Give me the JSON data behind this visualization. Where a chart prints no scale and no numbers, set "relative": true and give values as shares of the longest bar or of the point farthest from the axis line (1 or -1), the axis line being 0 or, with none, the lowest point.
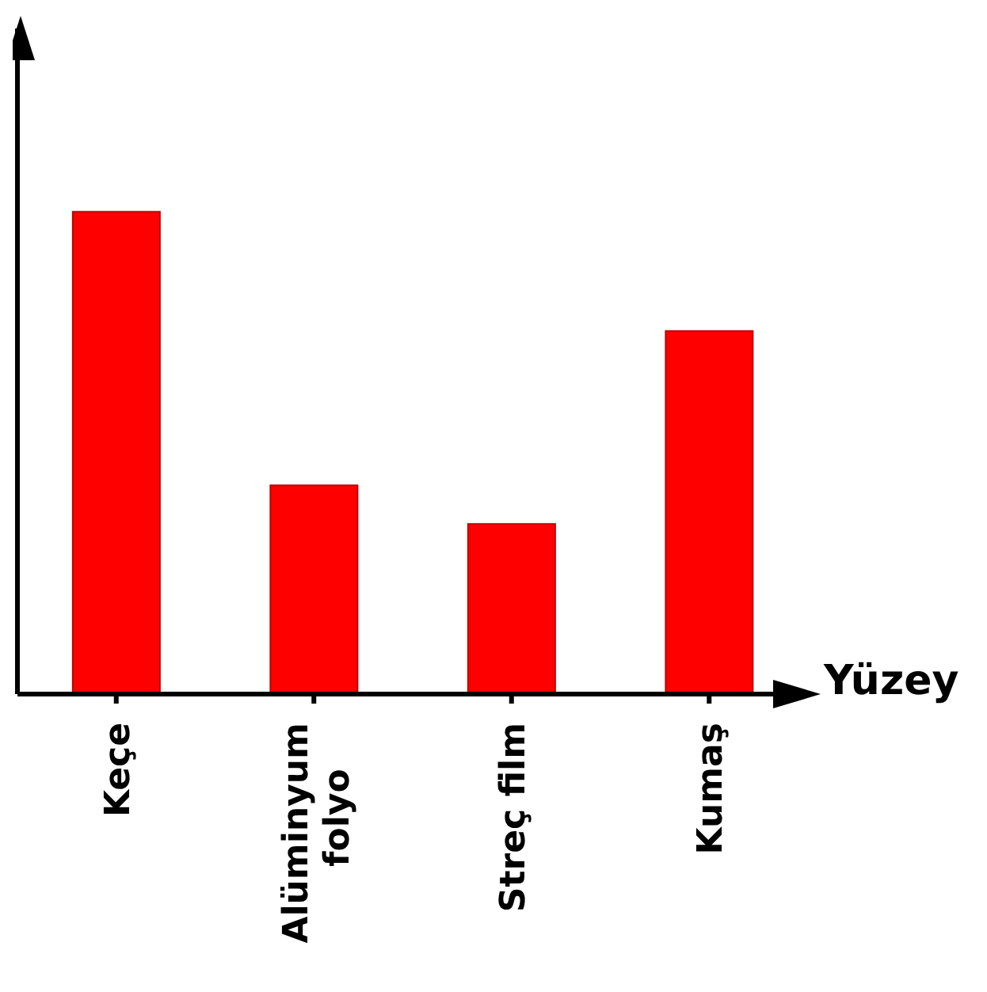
{
  "chart_data": {
    "type": "bar",
    "xlabel": "Yüzey",
    "relative": true,
    "categories": [
      "Keçe",
      "Alüminyum folyo",
      "Streç film",
      "Kumaş"
    ],
    "values": [
      1,
      0.433,
      0.353,
      0.753
    ],
    "color": "#ff0000",
    "grid": false
  }
}
